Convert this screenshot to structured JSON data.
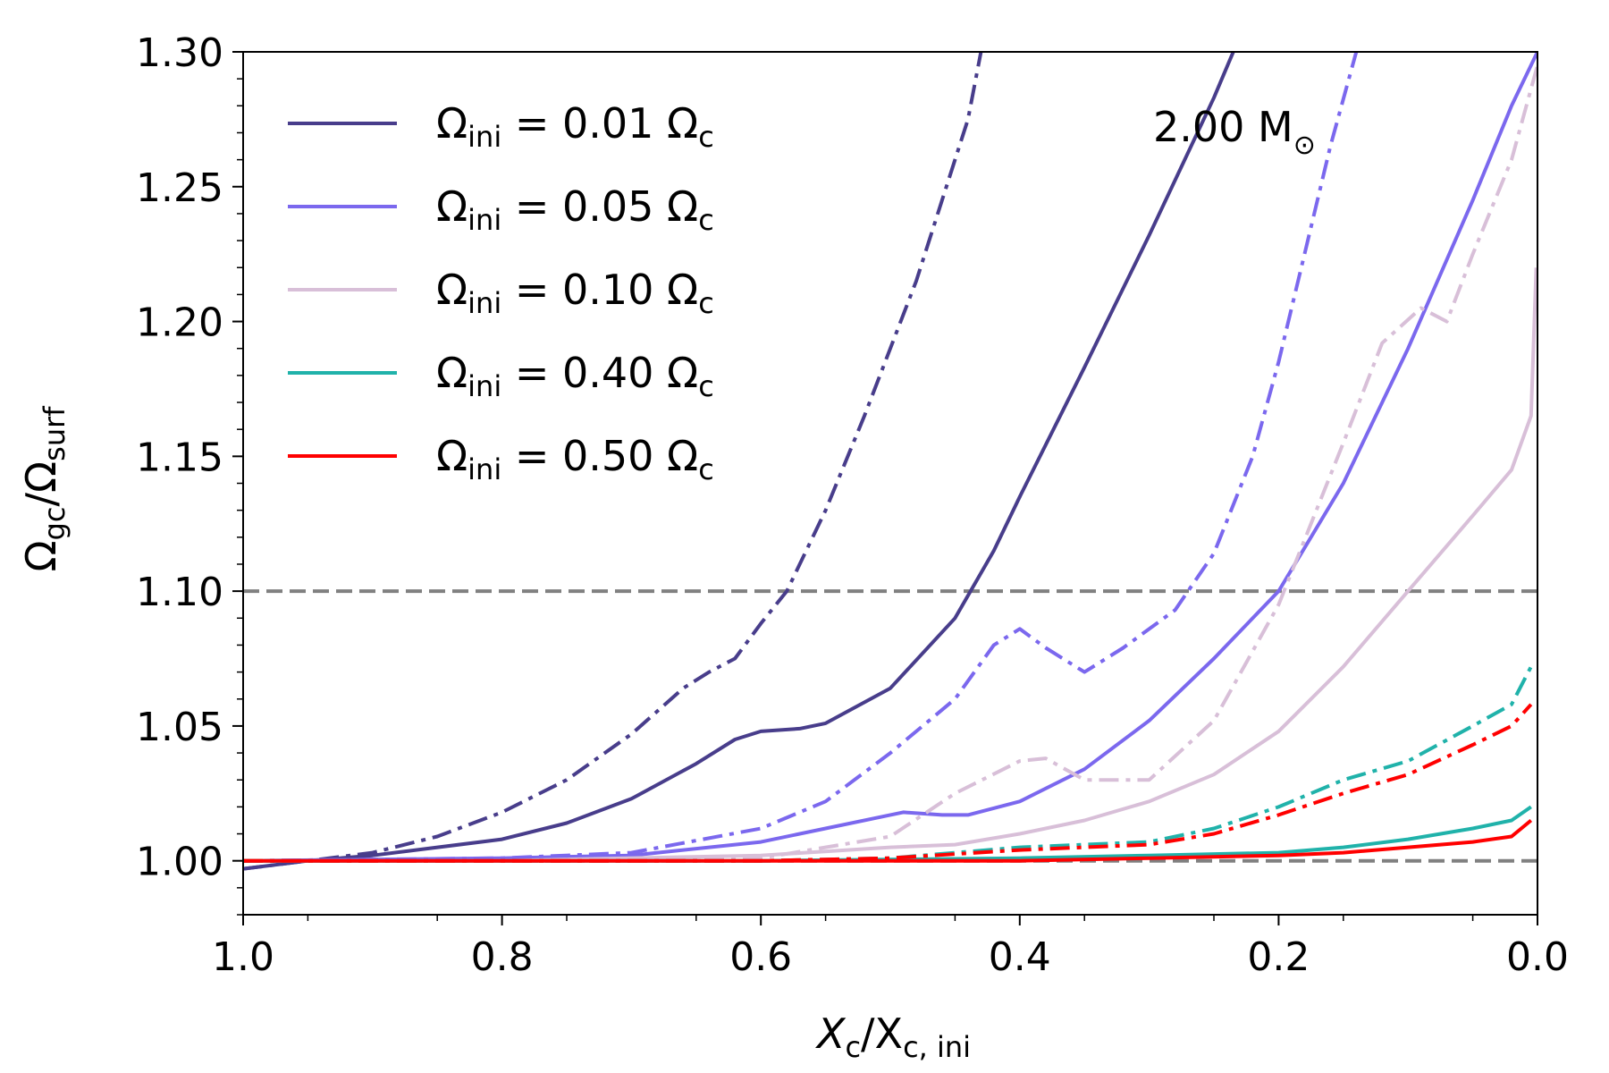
{
  "chart_data": {
    "type": "line",
    "xlabel": {
      "main": "X",
      "sub1": "c",
      "mid": "/X",
      "sub2": "c, ini"
    },
    "ylabel": {
      "main": "Ω",
      "sub1": "gc",
      "mid": "/Ω",
      "sub2": "surf"
    },
    "xlim": [
      1.0,
      0.0
    ],
    "ylim": [
      0.98,
      1.3
    ],
    "xticks": [
      1.0,
      0.8,
      0.6,
      0.4,
      0.2,
      0.0
    ],
    "xtick_labels": [
      "1.0",
      "0.8",
      "0.6",
      "0.4",
      "0.2",
      "0.0"
    ],
    "yticks": [
      1.0,
      1.05,
      1.1,
      1.15,
      1.2,
      1.25,
      1.3
    ],
    "ytick_labels": [
      "1.00",
      "1.05",
      "1.10",
      "1.15",
      "1.20",
      "1.25",
      "1.30"
    ],
    "annotation": {
      "text": "2.00 M",
      "symbol": "⊙"
    },
    "reference_lines": [
      {
        "y": 1.1,
        "style": "dashed",
        "color": "#808080"
      },
      {
        "y": 1.0,
        "style": "dashed",
        "color": "#808080"
      }
    ],
    "legend_position": "top-left",
    "series": [
      {
        "name": "Ω_ini = 0.01 Ω_c",
        "label_main": "Ω",
        "label_sub": "ini",
        "label_value": " = 0.01 Ω",
        "label_sub2": "c",
        "color": "#483D8B",
        "style": "solid",
        "points": [
          [
            1.0,
            0.997
          ],
          [
            0.95,
            1.0
          ],
          [
            0.9,
            1.002
          ],
          [
            0.8,
            1.008
          ],
          [
            0.75,
            1.014
          ],
          [
            0.7,
            1.023
          ],
          [
            0.65,
            1.036
          ],
          [
            0.62,
            1.045
          ],
          [
            0.6,
            1.048
          ],
          [
            0.57,
            1.049
          ],
          [
            0.55,
            1.051
          ],
          [
            0.5,
            1.064
          ],
          [
            0.45,
            1.09
          ],
          [
            0.42,
            1.115
          ],
          [
            0.4,
            1.135
          ],
          [
            0.35,
            1.183
          ],
          [
            0.3,
            1.232
          ],
          [
            0.25,
            1.283
          ],
          [
            0.235,
            1.3
          ]
        ]
      },
      {
        "name": "Ω_ini = 0.01 Ω_c (dash-dot)",
        "color": "#483D8B",
        "style": "dashdot",
        "points": [
          [
            1.0,
            0.997
          ],
          [
            0.95,
            1.0
          ],
          [
            0.9,
            1.003
          ],
          [
            0.85,
            1.009
          ],
          [
            0.8,
            1.018
          ],
          [
            0.75,
            1.03
          ],
          [
            0.7,
            1.047
          ],
          [
            0.66,
            1.064
          ],
          [
            0.64,
            1.07
          ],
          [
            0.62,
            1.075
          ],
          [
            0.6,
            1.088
          ],
          [
            0.58,
            1.1
          ],
          [
            0.55,
            1.13
          ],
          [
            0.52,
            1.165
          ],
          [
            0.5,
            1.19
          ],
          [
            0.48,
            1.215
          ],
          [
            0.46,
            1.245
          ],
          [
            0.44,
            1.275
          ],
          [
            0.43,
            1.3
          ]
        ]
      },
      {
        "name": "Ω_ini = 0.05 Ω_c",
        "label_main": "Ω",
        "label_sub": "ini",
        "label_value": " = 0.05 Ω",
        "label_sub2": "c",
        "color": "#7B68EE",
        "style": "solid",
        "points": [
          [
            1.0,
            1.0
          ],
          [
            0.8,
            1.001
          ],
          [
            0.7,
            1.002
          ],
          [
            0.6,
            1.007
          ],
          [
            0.55,
            1.012
          ],
          [
            0.5,
            1.017
          ],
          [
            0.49,
            1.018
          ],
          [
            0.46,
            1.017
          ],
          [
            0.44,
            1.017
          ],
          [
            0.4,
            1.022
          ],
          [
            0.35,
            1.034
          ],
          [
            0.3,
            1.052
          ],
          [
            0.25,
            1.075
          ],
          [
            0.2,
            1.1
          ],
          [
            0.15,
            1.14
          ],
          [
            0.1,
            1.19
          ],
          [
            0.05,
            1.245
          ],
          [
            0.02,
            1.28
          ],
          [
            0.0,
            1.3
          ]
        ]
      },
      {
        "name": "Ω_ini = 0.05 Ω_c (dash-dot)",
        "color": "#7B68EE",
        "style": "dashdot",
        "points": [
          [
            1.0,
            1.0
          ],
          [
            0.8,
            1.001
          ],
          [
            0.7,
            1.003
          ],
          [
            0.6,
            1.012
          ],
          [
            0.55,
            1.022
          ],
          [
            0.5,
            1.04
          ],
          [
            0.45,
            1.06
          ],
          [
            0.42,
            1.08
          ],
          [
            0.4,
            1.086
          ],
          [
            0.38,
            1.079
          ],
          [
            0.35,
            1.07
          ],
          [
            0.32,
            1.079
          ],
          [
            0.28,
            1.093
          ],
          [
            0.25,
            1.114
          ],
          [
            0.22,
            1.15
          ],
          [
            0.2,
            1.185
          ],
          [
            0.18,
            1.225
          ],
          [
            0.16,
            1.265
          ],
          [
            0.14,
            1.3
          ]
        ]
      },
      {
        "name": "Ω_ini = 0.10 Ω_c",
        "label_main": "Ω",
        "label_sub": "ini",
        "label_value": " = 0.10 Ω",
        "label_sub2": "c",
        "color": "#D8BFD8",
        "style": "solid",
        "points": [
          [
            1.0,
            1.0
          ],
          [
            0.8,
            1.0
          ],
          [
            0.6,
            1.002
          ],
          [
            0.5,
            1.005
          ],
          [
            0.45,
            1.006
          ],
          [
            0.4,
            1.01
          ],
          [
            0.35,
            1.015
          ],
          [
            0.3,
            1.022
          ],
          [
            0.25,
            1.032
          ],
          [
            0.2,
            1.048
          ],
          [
            0.15,
            1.072
          ],
          [
            0.1,
            1.1
          ],
          [
            0.05,
            1.128
          ],
          [
            0.02,
            1.145
          ],
          [
            0.005,
            1.165
          ],
          [
            0.001,
            1.22
          ]
        ]
      },
      {
        "name": "Ω_ini = 0.10 Ω_c (dash-dot)",
        "color": "#D8BFD8",
        "style": "dashdot",
        "points": [
          [
            1.0,
            1.0
          ],
          [
            0.8,
            1.0
          ],
          [
            0.6,
            1.001
          ],
          [
            0.5,
            1.009
          ],
          [
            0.45,
            1.025
          ],
          [
            0.4,
            1.037
          ],
          [
            0.38,
            1.038
          ],
          [
            0.35,
            1.03
          ],
          [
            0.3,
            1.03
          ],
          [
            0.25,
            1.052
          ],
          [
            0.2,
            1.095
          ],
          [
            0.15,
            1.155
          ],
          [
            0.12,
            1.192
          ],
          [
            0.09,
            1.205
          ],
          [
            0.07,
            1.2
          ],
          [
            0.05,
            1.225
          ],
          [
            0.02,
            1.26
          ],
          [
            0.0,
            1.295
          ]
        ]
      },
      {
        "name": "Ω_ini = 0.40 Ω_c",
        "label_main": "Ω",
        "label_sub": "ini",
        "label_value": " = 0.40 Ω",
        "label_sub2": "c",
        "color": "#20B2AA",
        "style": "solid",
        "points": [
          [
            1.0,
            1.0
          ],
          [
            0.6,
            1.0
          ],
          [
            0.4,
            1.001
          ],
          [
            0.3,
            1.002
          ],
          [
            0.2,
            1.003
          ],
          [
            0.15,
            1.005
          ],
          [
            0.1,
            1.008
          ],
          [
            0.05,
            1.012
          ],
          [
            0.02,
            1.015
          ],
          [
            0.005,
            1.02
          ]
        ]
      },
      {
        "name": "Ω_ini = 0.40 Ω_c (dash-dot)",
        "color": "#20B2AA",
        "style": "dashdot",
        "points": [
          [
            1.0,
            1.0
          ],
          [
            0.6,
            1.0
          ],
          [
            0.5,
            1.001
          ],
          [
            0.4,
            1.005
          ],
          [
            0.35,
            1.006
          ],
          [
            0.3,
            1.007
          ],
          [
            0.25,
            1.012
          ],
          [
            0.2,
            1.02
          ],
          [
            0.15,
            1.03
          ],
          [
            0.1,
            1.037
          ],
          [
            0.05,
            1.05
          ],
          [
            0.02,
            1.058
          ],
          [
            0.005,
            1.072
          ]
        ]
      },
      {
        "name": "Ω_ini = 0.50 Ω_c",
        "label_main": "Ω",
        "label_sub": "ini",
        "label_value": " = 0.50 Ω",
        "label_sub2": "c",
        "color": "#FF0000",
        "style": "solid",
        "points": [
          [
            1.0,
            1.0
          ],
          [
            0.6,
            1.0
          ],
          [
            0.4,
            1.0
          ],
          [
            0.3,
            1.001
          ],
          [
            0.2,
            1.002
          ],
          [
            0.15,
            1.003
          ],
          [
            0.1,
            1.005
          ],
          [
            0.05,
            1.007
          ],
          [
            0.02,
            1.009
          ],
          [
            0.005,
            1.015
          ]
        ]
      },
      {
        "name": "Ω_ini = 0.50 Ω_c (dash-dot)",
        "color": "#FF0000",
        "style": "dashdot",
        "points": [
          [
            1.0,
            1.0
          ],
          [
            0.6,
            1.0
          ],
          [
            0.5,
            1.001
          ],
          [
            0.4,
            1.004
          ],
          [
            0.35,
            1.005
          ],
          [
            0.3,
            1.006
          ],
          [
            0.25,
            1.01
          ],
          [
            0.2,
            1.017
          ],
          [
            0.15,
            1.025
          ],
          [
            0.1,
            1.032
          ],
          [
            0.05,
            1.043
          ],
          [
            0.02,
            1.05
          ],
          [
            0.005,
            1.058
          ]
        ]
      }
    ]
  }
}
